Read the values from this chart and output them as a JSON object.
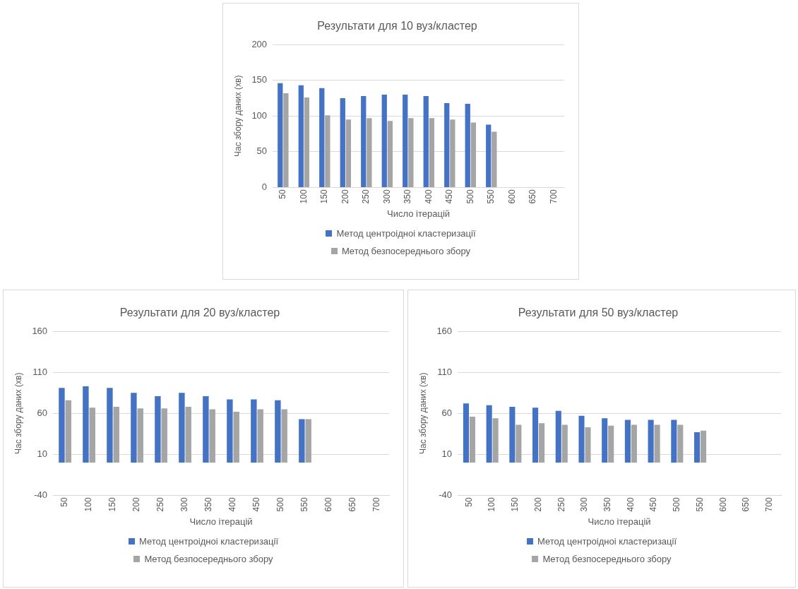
{
  "chart_data": [
    {
      "type": "bar",
      "title": "Результати для 10 вуз/кластер",
      "xlabel": "Число ітерацій",
      "ylabel": "Час збору даних (хв)",
      "categories": [
        "50",
        "100",
        "150",
        "200",
        "250",
        "300",
        "350",
        "400",
        "450",
        "500",
        "550",
        "600",
        "650",
        "700"
      ],
      "series": [
        {
          "name": "Метод центроідноі кластеризації",
          "color": "#4472c4",
          "values": [
            146,
            143,
            139,
            125,
            128,
            130,
            130,
            128,
            118,
            117,
            88,
            null,
            null,
            null
          ]
        },
        {
          "name": "Метод безпосереднього збору",
          "color": "#a5a5a5",
          "values": [
            132,
            126,
            101,
            95,
            97,
            93,
            97,
            97,
            95,
            91,
            78,
            null,
            null,
            null
          ]
        }
      ],
      "ylim": [
        0,
        200
      ],
      "yticks": [
        0,
        50,
        100,
        150,
        200
      ],
      "grid": "y",
      "legend": "bottom"
    },
    {
      "type": "bar",
      "title": "Результати для 20 вуз/кластер",
      "xlabel": "Число ітерацій",
      "ylabel": "Час збору даних (хв)",
      "categories": [
        "50",
        "100",
        "150",
        "200",
        "250",
        "300",
        "350",
        "400",
        "450",
        "500",
        "550",
        "600",
        "650",
        "700"
      ],
      "series": [
        {
          "name": "Метод центроідноі кластеризації",
          "color": "#4472c4",
          "values": [
            91,
            93,
            91,
            85,
            81,
            85,
            81,
            77,
            77,
            76,
            53,
            null,
            null,
            null
          ]
        },
        {
          "name": "Метод безпосереднього збору",
          "color": "#a5a5a5",
          "values": [
            76,
            67,
            68,
            66,
            66,
            68,
            65,
            62,
            65,
            65,
            53,
            null,
            null,
            null
          ]
        }
      ],
      "ylim": [
        -40,
        160
      ],
      "yticks": [
        -40,
        10,
        60,
        110,
        160
      ],
      "grid": "y",
      "legend": "bottom"
    },
    {
      "type": "bar",
      "title": "Результати для 50 вуз/кластер",
      "xlabel": "Число ітерацій",
      "ylabel": "Час збору даних (хв)",
      "categories": [
        "50",
        "100",
        "150",
        "200",
        "250",
        "300",
        "350",
        "400",
        "450",
        "500",
        "550",
        "600",
        "650",
        "700"
      ],
      "series": [
        {
          "name": "Метод центроідноі кластеризації",
          "color": "#4472c4",
          "values": [
            72,
            70,
            68,
            67,
            63,
            57,
            54,
            52,
            52,
            52,
            37,
            null,
            null,
            null
          ]
        },
        {
          "name": "Метод безпосереднього збору",
          "color": "#a5a5a5",
          "values": [
            56,
            54,
            46,
            48,
            46,
            43,
            45,
            46,
            46,
            46,
            39,
            null,
            null,
            null
          ]
        }
      ],
      "ylim": [
        -40,
        160
      ],
      "yticks": [
        -40,
        10,
        60,
        110,
        160
      ],
      "grid": "y",
      "legend": "bottom"
    }
  ]
}
